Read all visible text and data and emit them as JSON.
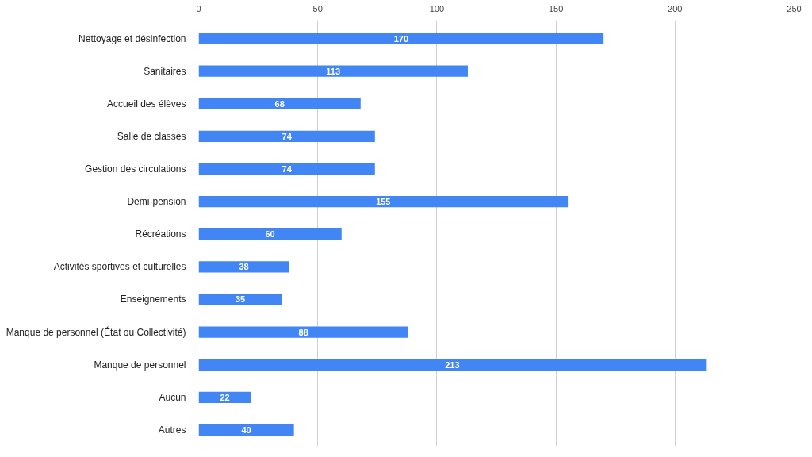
{
  "chart_data": {
    "type": "bar",
    "orientation": "horizontal",
    "categories": [
      "Nettoyage et désinfection",
      "Sanitaires",
      "Accueil des élèves",
      "Salle de classes",
      "Gestion des circulations",
      "Demi-pension",
      "Récréations",
      "Activités sportives et culturelles",
      "Enseignements",
      "Manque de personnel (État ou Collectivité)",
      "Manque de personnel",
      "Aucun",
      "Autres"
    ],
    "values": [
      170,
      113,
      68,
      74,
      74,
      155,
      60,
      38,
      35,
      88,
      213,
      22,
      40
    ],
    "color": "#4285f4",
    "xlim": [
      0,
      250
    ],
    "xticks": [
      0,
      50,
      100,
      150,
      200,
      250
    ],
    "grid": "x",
    "data_labels": true
  }
}
